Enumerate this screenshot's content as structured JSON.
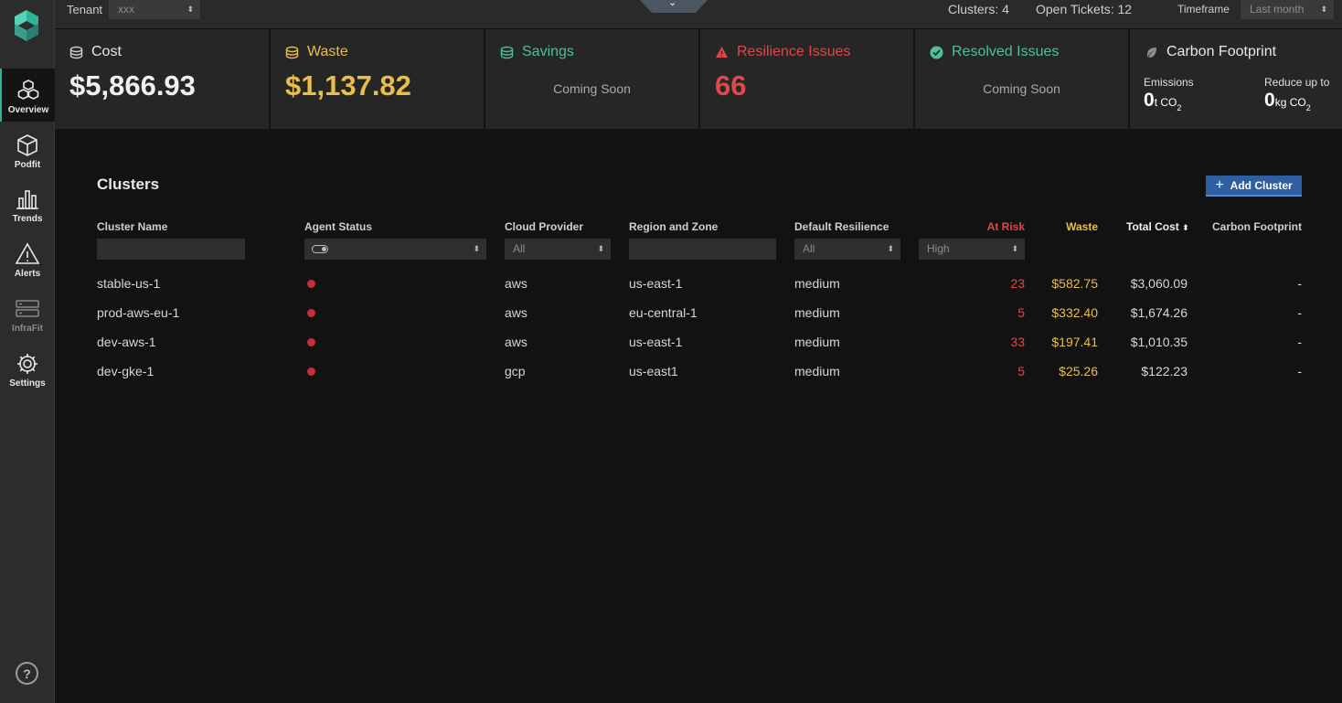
{
  "colors": {
    "accent": "#2fb39a",
    "waste": "#e8bf4a",
    "risk": "#e0474c",
    "savings": "#4fbf9d",
    "button": "#2f5fa0"
  },
  "sidebar": {
    "items": [
      {
        "label": "Overview",
        "icon": "cubes-icon",
        "active": true
      },
      {
        "label": "Podfit",
        "icon": "cube-icon"
      },
      {
        "label": "Trends",
        "icon": "bar-chart-icon"
      },
      {
        "label": "Alerts",
        "icon": "warning-icon"
      },
      {
        "label": "InfraFit",
        "icon": "server-icon",
        "disabled": true
      },
      {
        "label": "Settings",
        "icon": "gear-icon"
      }
    ],
    "help": "?"
  },
  "topbar": {
    "tenant_label": "Tenant",
    "tenant_value": "xxx",
    "clusters": "Clusters: 4",
    "tickets": "Open Tickets: 12",
    "timeframe_label": "Timeframe",
    "timeframe_value": "Last month"
  },
  "cards": {
    "cost": {
      "title": "Cost",
      "value": "$5,866.93"
    },
    "waste": {
      "title": "Waste",
      "value": "$1,137.82"
    },
    "savings": {
      "title": "Savings",
      "note": "Coming Soon"
    },
    "resilience": {
      "title": "Resilience Issues",
      "value": "66"
    },
    "resolved": {
      "title": "Resolved Issues",
      "note": "Coming Soon"
    },
    "carbon": {
      "title": "Carbon Footprint",
      "emissions_label": "Emissions",
      "emissions_value": "0",
      "emissions_unit": "t CO",
      "reduce_label": "Reduce up to",
      "reduce_value": "0",
      "reduce_unit": "kg CO",
      "sub": "2"
    }
  },
  "clusters": {
    "title": "Clusters",
    "add_button": "Add Cluster",
    "columns": {
      "name": "Cluster Name",
      "agent": "Agent Status",
      "cloud": "Cloud Provider",
      "region": "Region and Zone",
      "resilience": "Default Resilience",
      "risk": "At Risk",
      "waste": "Waste",
      "total": "Total Cost",
      "carbon": "Carbon Footprint"
    },
    "filters": {
      "cloud": "All",
      "resilience": "All",
      "risk": "High"
    },
    "rows": [
      {
        "name": "stable-us-1",
        "cloud": "aws",
        "region": "us-east-1",
        "resilience": "medium",
        "risk": "23",
        "waste": "$582.75",
        "total": "$3,060.09",
        "carbon": "-"
      },
      {
        "name": "prod-aws-eu-1",
        "cloud": "aws",
        "region": "eu-central-1",
        "resilience": "medium",
        "risk": "5",
        "waste": "$332.40",
        "total": "$1,674.26",
        "carbon": "-"
      },
      {
        "name": "dev-aws-1",
        "cloud": "aws",
        "region": "us-east-1",
        "resilience": "medium",
        "risk": "33",
        "waste": "$197.41",
        "total": "$1,010.35",
        "carbon": "-"
      },
      {
        "name": "dev-gke-1",
        "cloud": "gcp",
        "region": "us-east1",
        "resilience": "medium",
        "risk": "5",
        "waste": "$25.26",
        "total": "$122.23",
        "carbon": "-"
      }
    ]
  }
}
